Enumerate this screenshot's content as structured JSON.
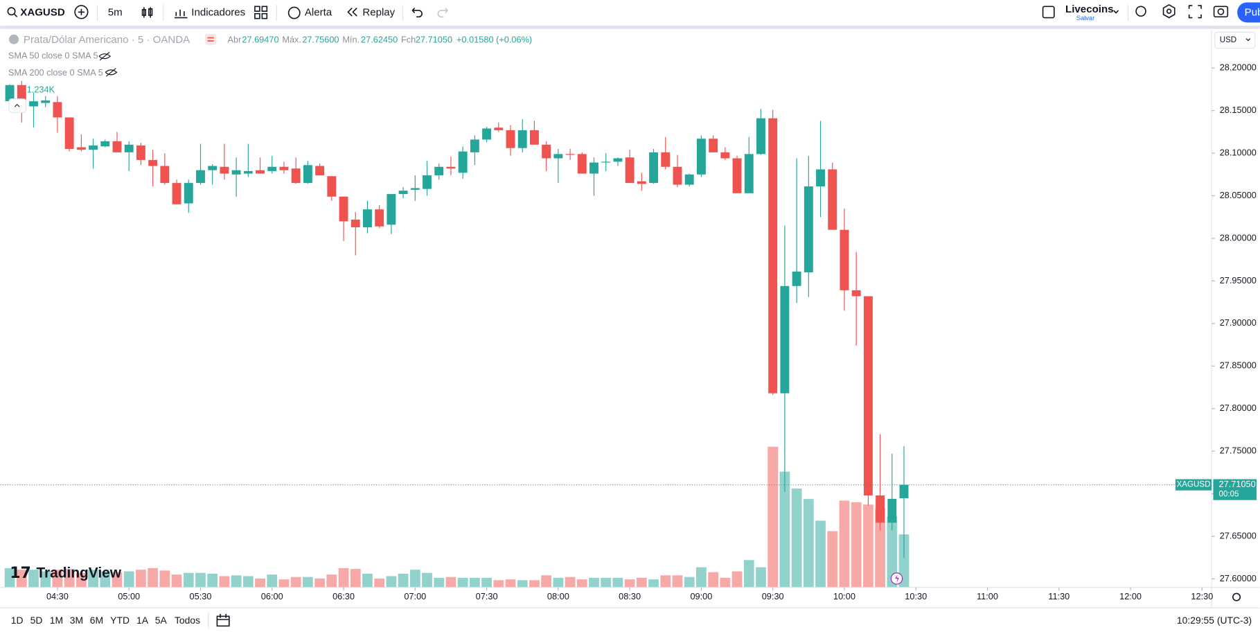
{
  "toolbar": {
    "symbol": "XAGUSD",
    "interval": "5m",
    "indicators": "Indicadores",
    "alert": "Alerta",
    "replay": "Replay",
    "layout_name": "Livecoins",
    "save": "Salvar",
    "publish": "Pub"
  },
  "bottom_bar": {
    "ranges": [
      "1D",
      "5D",
      "1M",
      "3M",
      "6M",
      "YTD",
      "1A",
      "5A",
      "Todos"
    ],
    "clock": "10:29:55 (UTC-3)"
  },
  "chart_data": {
    "type": "candlestick",
    "title": "Prata/Dólar Americano · 5 · OANDA",
    "currency": "USD",
    "legend": {
      "open_label": "Abr",
      "open": "27.69470",
      "high_label": "Máx.",
      "high": "27.75600",
      "low_label": "Mín.",
      "low": "27.62450",
      "close_label": "Fch",
      "close": "27.71050",
      "change": "+0.01580 (+0.06%)"
    },
    "indicators": [
      "SMA 50 close 0 SMA 5",
      "SMA 200 close 0 SMA 5"
    ],
    "watermark": "TradingView",
    "up_color": "#26a69a",
    "down_color": "#ef5350",
    "x": [
      "04:10",
      "04:15",
      "04:20",
      "04:25",
      "04:30",
      "04:35",
      "04:40",
      "04:45",
      "04:50",
      "04:55",
      "05:00",
      "05:05",
      "05:10",
      "05:15",
      "05:20",
      "05:25",
      "05:30",
      "05:35",
      "05:40",
      "05:45",
      "05:50",
      "05:55",
      "06:00",
      "06:05",
      "06:10",
      "06:15",
      "06:20",
      "06:25",
      "06:30",
      "06:35",
      "06:40",
      "06:45",
      "06:50",
      "06:55",
      "07:00",
      "07:05",
      "07:10",
      "07:15",
      "07:20",
      "07:25",
      "07:30",
      "07:35",
      "07:40",
      "07:45",
      "07:50",
      "07:55",
      "08:00",
      "08:05",
      "08:10",
      "08:15",
      "08:20",
      "08:25",
      "08:30",
      "08:35",
      "08:40",
      "08:45",
      "08:50",
      "08:55",
      "09:00",
      "09:05",
      "09:10",
      "09:15",
      "09:20",
      "09:25",
      "09:30",
      "09:35",
      "09:40",
      "09:45",
      "09:50",
      "09:55",
      "10:00",
      "10:05",
      "10:10",
      "10:15",
      "10:20",
      "10:25"
    ],
    "open": [
      28.161,
      28.18,
      28.155,
      28.159,
      28.16,
      28.142,
      28.107,
      28.104,
      28.108,
      28.114,
      28.101,
      28.109,
      28.092,
      28.085,
      28.065,
      28.041,
      28.065,
      28.08,
      28.084,
      28.075,
      28.076,
      28.08,
      28.079,
      28.084,
      28.082,
      28.065,
      28.085,
      28.073,
      28.049,
      28.022,
      28.013,
      28.034,
      28.016,
      28.052,
      28.057,
      28.058,
      28.074,
      28.084,
      28.077,
      28.101,
      28.116,
      28.13,
      28.127,
      28.106,
      28.127,
      28.11,
      28.094,
      28.099,
      28.099,
      28.076,
      28.089,
      28.09,
      28.095,
      28.067,
      28.065,
      28.101,
      28.084,
      28.063,
      28.075,
      28.117,
      28.101,
      28.094,
      28.053,
      28.099,
      28.141,
      27.818,
      27.944,
      27.96,
      28.061,
      28.081,
      28.01,
      27.939,
      27.932,
      27.698,
      27.666,
      27.6947
    ],
    "high": [
      28.181,
      28.185,
      28.171,
      28.167,
      28.167,
      28.142,
      28.122,
      28.117,
      28.116,
      28.125,
      28.114,
      28.112,
      28.104,
      28.1,
      28.069,
      28.069,
      28.111,
      28.087,
      28.111,
      28.095,
      28.111,
      28.095,
      28.097,
      28.09,
      28.095,
      28.091,
      28.088,
      28.073,
      28.049,
      28.031,
      28.044,
      28.039,
      28.052,
      28.06,
      28.074,
      28.091,
      28.088,
      28.096,
      28.108,
      28.121,
      28.131,
      28.136,
      28.133,
      28.14,
      28.138,
      28.114,
      28.105,
      28.105,
      28.101,
      28.095,
      28.1,
      28.095,
      28.104,
      28.077,
      28.105,
      28.119,
      28.098,
      28.076,
      28.121,
      28.121,
      28.107,
      28.097,
      28.119,
      28.152,
      28.151,
      28.015,
      28.094,
      28.097,
      28.138,
      28.089,
      28.035,
      27.984,
      27.932,
      27.77,
      27.747,
      27.756
    ],
    "low": [
      28.158,
      28.136,
      28.13,
      28.154,
      28.124,
      28.102,
      28.102,
      28.082,
      28.107,
      28.101,
      28.079,
      28.086,
      28.061,
      28.063,
      28.04,
      28.03,
      28.063,
      28.063,
      28.069,
      28.049,
      28.072,
      28.076,
      28.076,
      28.076,
      28.064,
      28.064,
      28.074,
      28.044,
      27.997,
      27.98,
      28.006,
      28.012,
      28.005,
      28.047,
      28.044,
      28.05,
      28.069,
      28.074,
      28.07,
      28.086,
      28.113,
      28.125,
      28.097,
      28.101,
      28.11,
      28.079,
      28.065,
      28.092,
      28.076,
      28.05,
      28.079,
      28.085,
      28.065,
      28.056,
      28.064,
      28.081,
      28.06,
      28.061,
      28.072,
      28.101,
      28.092,
      28.053,
      28.053,
      28.098,
      27.816,
      27.702,
      27.924,
      27.931,
      28.025,
      28.01,
      27.915,
      27.874,
      27.686,
      27.657,
      27.657,
      27.6245
    ],
    "close": [
      28.18,
      28.161,
      28.161,
      28.162,
      28.142,
      28.105,
      28.104,
      28.109,
      28.114,
      28.101,
      28.11,
      28.092,
      28.085,
      28.065,
      28.04,
      28.065,
      28.08,
      28.085,
      28.076,
      28.08,
      28.079,
      28.076,
      28.084,
      28.08,
      28.065,
      28.086,
      28.074,
      28.049,
      28.02,
      28.013,
      28.034,
      28.014,
      28.052,
      28.056,
      28.059,
      28.074,
      28.084,
      28.082,
      28.102,
      28.116,
      28.129,
      28.127,
      28.106,
      28.127,
      28.11,
      28.094,
      28.099,
      28.098,
      28.076,
      28.089,
      28.09,
      28.094,
      28.065,
      28.064,
      28.101,
      28.084,
      28.063,
      28.075,
      28.117,
      28.101,
      28.094,
      28.053,
      28.099,
      28.141,
      27.818,
      27.944,
      27.961,
      28.061,
      28.081,
      28.01,
      27.939,
      27.932,
      27.698,
      27.666,
      27.694,
      27.7105
    ],
    "volume": {
      "values": [
        449,
        411,
        411,
        374,
        411,
        430,
        337,
        411,
        374,
        355,
        374,
        411,
        449,
        393,
        299,
        337,
        337,
        318,
        262,
        281,
        262,
        206,
        299,
        187,
        243,
        243,
        206,
        299,
        449,
        430,
        318,
        206,
        262,
        318,
        411,
        337,
        224,
        243,
        224,
        224,
        224,
        168,
        187,
        168,
        168,
        281,
        224,
        243,
        187,
        224,
        224,
        224,
        187,
        224,
        187,
        281,
        281,
        243,
        468,
        355,
        224,
        374,
        636,
        468,
        3273,
        2693,
        2300,
        2057,
        1552,
        1309,
        2020,
        1982,
        1926,
        1833,
        1646,
        1234
      ],
      "last_label": "1.234K",
      "lim": [
        0,
        4000
      ],
      "up_color": "rgba(38,166,154,0.5)",
      "down_color": "rgba(239,83,80,0.5)"
    },
    "xlim": [
      "04:06",
      "12:34"
    ],
    "xticks": [
      "04:30",
      "05:00",
      "05:30",
      "06:00",
      "06:30",
      "07:00",
      "07:30",
      "08:00",
      "08:30",
      "09:00",
      "09:30",
      "10:00",
      "10:30",
      "11:00",
      "11:30",
      "12:00",
      "12:30"
    ],
    "ylim": [
      27.59,
      28.245
    ],
    "yticks": [
      {
        "value": 27.6,
        "label": "27.60000"
      },
      {
        "value": 27.65,
        "label": "27.65000"
      },
      {
        "value": 27.7,
        "label": "27.70000"
      },
      {
        "value": 27.75,
        "label": "27.75000"
      },
      {
        "value": 27.8,
        "label": "27.80000"
      },
      {
        "value": 27.85,
        "label": "27.85000"
      },
      {
        "value": 27.9,
        "label": "27.90000"
      },
      {
        "value": 27.95,
        "label": "27.95000"
      },
      {
        "value": 28.0,
        "label": "28.00000"
      },
      {
        "value": 28.05,
        "label": "28.05000"
      },
      {
        "value": 28.1,
        "label": "28.10000"
      },
      {
        "value": 28.15,
        "label": "28.15000"
      },
      {
        "value": 28.2,
        "label": "28.20000"
      }
    ],
    "price_tag": {
      "symbol": "XAGUSD",
      "price": {
        "value": 27.7105,
        "label": "27.71050"
      },
      "countdown": "00:05"
    }
  }
}
